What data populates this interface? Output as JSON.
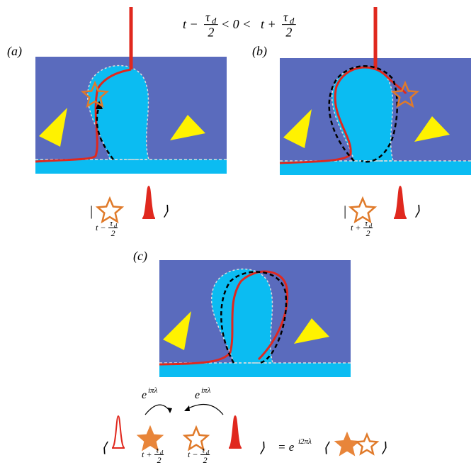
{
  "equation": {
    "left": {
      "pre": "t −",
      "num": "τ",
      "sub": "d",
      "den": "2"
    },
    "middle": "< 0 <",
    "right": {
      "pre": "t +",
      "num": "τ",
      "sub": "d",
      "den": "2"
    }
  },
  "panels": [
    {
      "label": "(a)",
      "bar": "|",
      "ket": "⟩",
      "subscript": {
        "pre": "t −",
        "num": "τ",
        "sub": "d",
        "den": "2"
      }
    },
    {
      "label": "(b)",
      "bar": "|",
      "ket": "⟩",
      "subscript": {
        "pre": "t +",
        "num": "τ",
        "sub": "d",
        "den": "2"
      }
    },
    {
      "label": "(c)"
    }
  ],
  "bottom": {
    "bra": "⟨",
    "ket": "⟩",
    "phase1": {
      "base": "e",
      "exp": "iπλ"
    },
    "phase2": {
      "base": "e",
      "exp": "iπλ"
    },
    "sub1": {
      "pre": "t +",
      "num": "τ",
      "sub": "d",
      "den": "2"
    },
    "sub2": {
      "pre": "t −",
      "num": "τ",
      "sub": "d",
      "den": "2"
    },
    "result": {
      "pre": "= e",
      "exp": "i2πλ"
    },
    "bra2": "⟨",
    "ket2": "⟩"
  }
}
